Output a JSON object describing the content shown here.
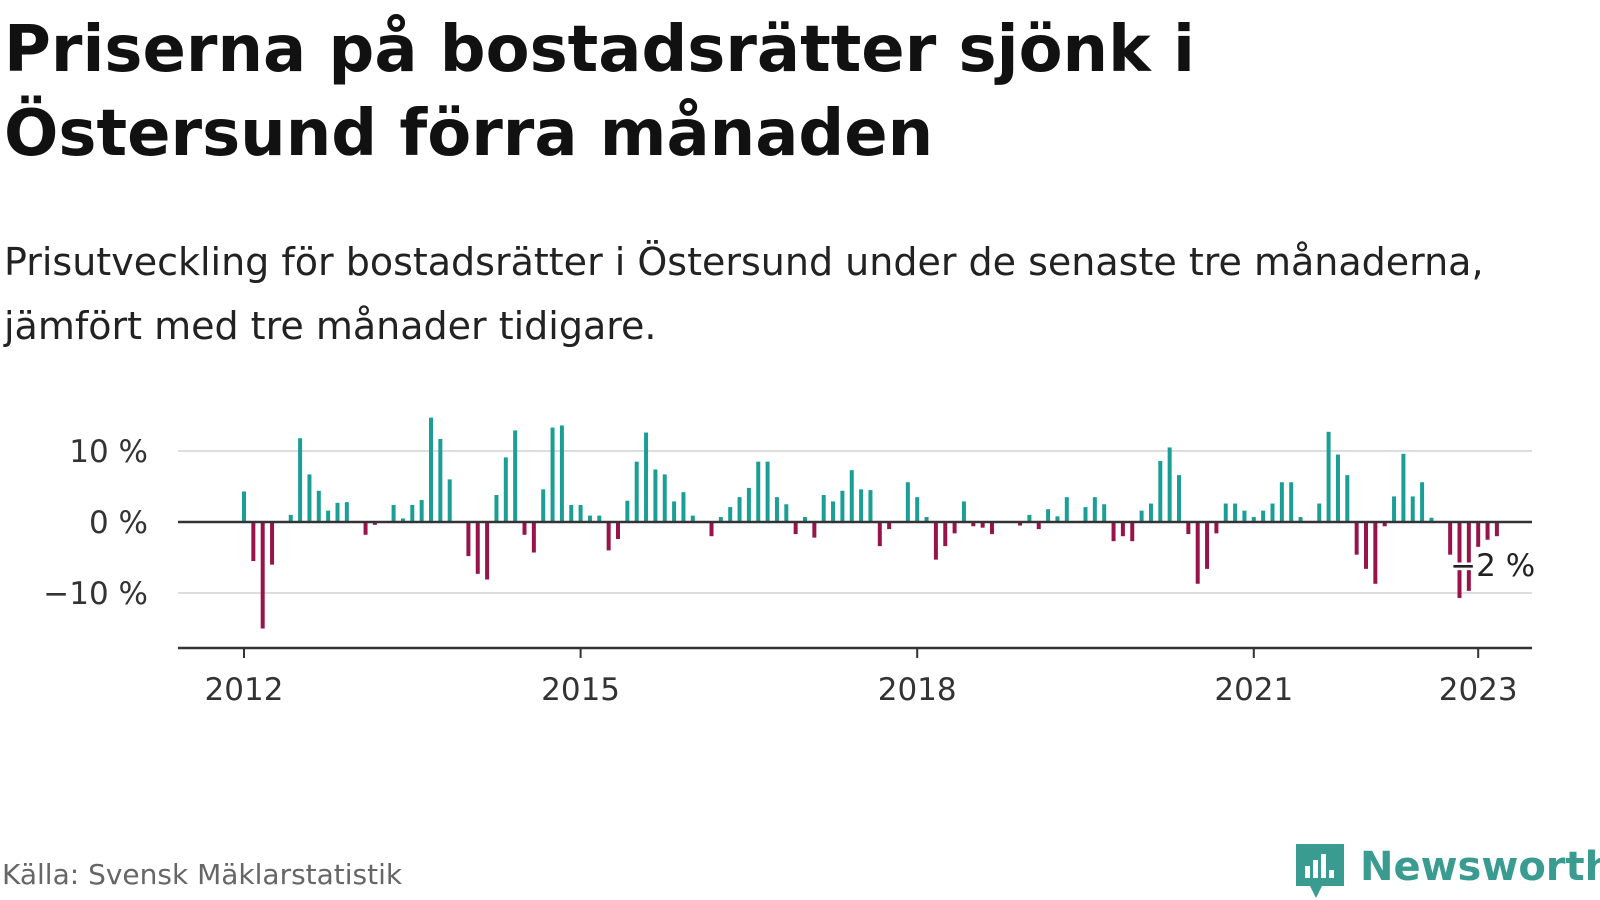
{
  "title": "Priserna på bostadsrätter sjönk i Östersund förra månaden",
  "subtitle": "Prisutveckling för bostadsrätter i Östersund under de senaste tre månaderna, jämfört med tre månader tidigare.",
  "source": "Källa: Svensk Mäklarstatistik",
  "brand": {
    "name": "Newsworthy",
    "icon": "newsworthy-logo-icon"
  },
  "colors": {
    "positive": "#1a9e96",
    "negative": "#98134a",
    "grid": "#dddddd",
    "axis": "#333333",
    "brand": "#3a9c91"
  },
  "chart_data": {
    "type": "bar",
    "x_unit": "month",
    "y_unit": "%",
    "ylim": [
      -18,
      15
    ],
    "yticks": [
      -10,
      0,
      10
    ],
    "ytick_labels": [
      "−10 %",
      "0 %",
      "10 %"
    ],
    "xticks": [
      "2012",
      "2015",
      "2018",
      "2021",
      "2023"
    ],
    "grid": true,
    "annotation": {
      "text": "−2 %",
      "x": "2023-01",
      "value": -2
    },
    "series": [
      {
        "values": [
          [
            "2012-01",
            4.3
          ],
          [
            "2012-02",
            -5.5
          ],
          [
            "2012-03",
            -15
          ],
          [
            "2012-04",
            -6
          ],
          [
            "2012-05",
            0
          ],
          [
            "2012-06",
            1
          ],
          [
            "2012-07",
            11.8
          ],
          [
            "2012-08",
            6.7
          ],
          [
            "2012-09",
            4.4
          ],
          [
            "2012-10",
            1.6
          ],
          [
            "2012-11",
            2.7
          ],
          [
            "2012-12",
            2.8
          ],
          [
            "2013-01",
            0
          ],
          [
            "2013-02",
            -1.8
          ],
          [
            "2013-03",
            -0.4
          ],
          [
            "2013-04",
            0
          ],
          [
            "2013-05",
            2.4
          ],
          [
            "2013-06",
            0.5
          ],
          [
            "2013-07",
            2.4
          ],
          [
            "2013-08",
            3.1
          ],
          [
            "2013-09",
            14.7
          ],
          [
            "2013-10",
            11.7
          ],
          [
            "2013-11",
            6
          ],
          [
            "2013-12",
            0
          ],
          [
            "2014-01",
            -4.8
          ],
          [
            "2014-02",
            -7.3
          ],
          [
            "2014-03",
            -8.1
          ],
          [
            "2014-04",
            3.8
          ],
          [
            "2014-05",
            9.1
          ],
          [
            "2014-06",
            12.9
          ],
          [
            "2014-07",
            -1.8
          ],
          [
            "2014-08",
            -4.3
          ],
          [
            "2014-09",
            4.6
          ],
          [
            "2014-10",
            13.3
          ],
          [
            "2014-11",
            13.6
          ],
          [
            "2014-12",
            2.4
          ],
          [
            "2015-01",
            2.4
          ],
          [
            "2015-02",
            0.9
          ],
          [
            "2015-03",
            0.9
          ],
          [
            "2015-04",
            -4
          ],
          [
            "2015-05",
            -2.4
          ],
          [
            "2015-06",
            3
          ],
          [
            "2015-07",
            8.5
          ],
          [
            "2015-08",
            12.6
          ],
          [
            "2015-09",
            7.4
          ],
          [
            "2015-10",
            6.7
          ],
          [
            "2015-11",
            2.9
          ],
          [
            "2015-12",
            4.2
          ],
          [
            "2016-01",
            0.9
          ],
          [
            "2016-02",
            0
          ],
          [
            "2016-03",
            -2
          ],
          [
            "2016-04",
            0.7
          ],
          [
            "2016-05",
            2.1
          ],
          [
            "2016-06",
            3.5
          ],
          [
            "2016-07",
            4.8
          ],
          [
            "2016-08",
            8.5
          ],
          [
            "2016-09",
            8.5
          ],
          [
            "2016-10",
            3.5
          ],
          [
            "2016-11",
            2.5
          ],
          [
            "2016-12",
            -1.7
          ],
          [
            "2017-01",
            0.7
          ],
          [
            "2017-02",
            -2.2
          ],
          [
            "2017-03",
            3.8
          ],
          [
            "2017-04",
            2.9
          ],
          [
            "2017-05",
            4.4
          ],
          [
            "2017-06",
            7.3
          ],
          [
            "2017-07",
            4.6
          ],
          [
            "2017-08",
            4.5
          ],
          [
            "2017-09",
            -3.4
          ],
          [
            "2017-10",
            -1
          ],
          [
            "2017-11",
            0
          ],
          [
            "2017-12",
            5.6
          ],
          [
            "2018-01",
            3.5
          ],
          [
            "2018-02",
            0.7
          ],
          [
            "2018-03",
            -5.3
          ],
          [
            "2018-04",
            -3.4
          ],
          [
            "2018-05",
            -1.6
          ],
          [
            "2018-06",
            2.9
          ],
          [
            "2018-07",
            -0.6
          ],
          [
            "2018-08",
            -0.8
          ],
          [
            "2018-09",
            -1.7
          ],
          [
            "2018-10",
            0
          ],
          [
            "2018-11",
            0
          ],
          [
            "2018-12",
            -0.5
          ],
          [
            "2019-01",
            1
          ],
          [
            "2019-02",
            -1
          ],
          [
            "2019-03",
            1.8
          ],
          [
            "2019-04",
            0.8
          ],
          [
            "2019-05",
            3.5
          ],
          [
            "2019-06",
            0
          ],
          [
            "2019-07",
            2.1
          ],
          [
            "2019-08",
            3.5
          ],
          [
            "2019-09",
            2.5
          ],
          [
            "2019-10",
            -2.7
          ],
          [
            "2019-11",
            -2
          ],
          [
            "2019-12",
            -2.7
          ],
          [
            "2020-01",
            1.6
          ],
          [
            "2020-02",
            2.6
          ],
          [
            "2020-03",
            8.6
          ],
          [
            "2020-04",
            10.5
          ],
          [
            "2020-05",
            6.6
          ],
          [
            "2020-06",
            -1.7
          ],
          [
            "2020-07",
            -8.7
          ],
          [
            "2020-08",
            -6.6
          ],
          [
            "2020-09",
            -1.6
          ],
          [
            "2020-10",
            2.6
          ],
          [
            "2020-11",
            2.6
          ],
          [
            "2020-12",
            1.6
          ],
          [
            "2021-01",
            0.7
          ],
          [
            "2021-02",
            1.6
          ],
          [
            "2021-03",
            2.6
          ],
          [
            "2021-04",
            5.6
          ],
          [
            "2021-05",
            5.6
          ],
          [
            "2021-06",
            0.7
          ],
          [
            "2021-07",
            0
          ],
          [
            "2021-08",
            2.6
          ],
          [
            "2021-09",
            12.7
          ],
          [
            "2021-10",
            9.5
          ],
          [
            "2021-11",
            6.6
          ],
          [
            "2021-12",
            -4.6
          ],
          [
            "2022-01",
            -6.6
          ],
          [
            "2022-02",
            -8.7
          ],
          [
            "2022-03",
            -0.6
          ],
          [
            "2022-04",
            3.6
          ],
          [
            "2022-05",
            9.6
          ],
          [
            "2022-06",
            3.6
          ],
          [
            "2022-07",
            5.6
          ],
          [
            "2022-08",
            0.6
          ],
          [
            "2022-09",
            0
          ],
          [
            "2022-10",
            -4.6
          ],
          [
            "2022-11",
            -10.7
          ],
          [
            "2022-12",
            -9.7
          ],
          [
            "2023-01",
            -3.5
          ],
          [
            "2023-02",
            -2.5
          ],
          [
            "2023-03",
            -2
          ]
        ]
      }
    ]
  }
}
